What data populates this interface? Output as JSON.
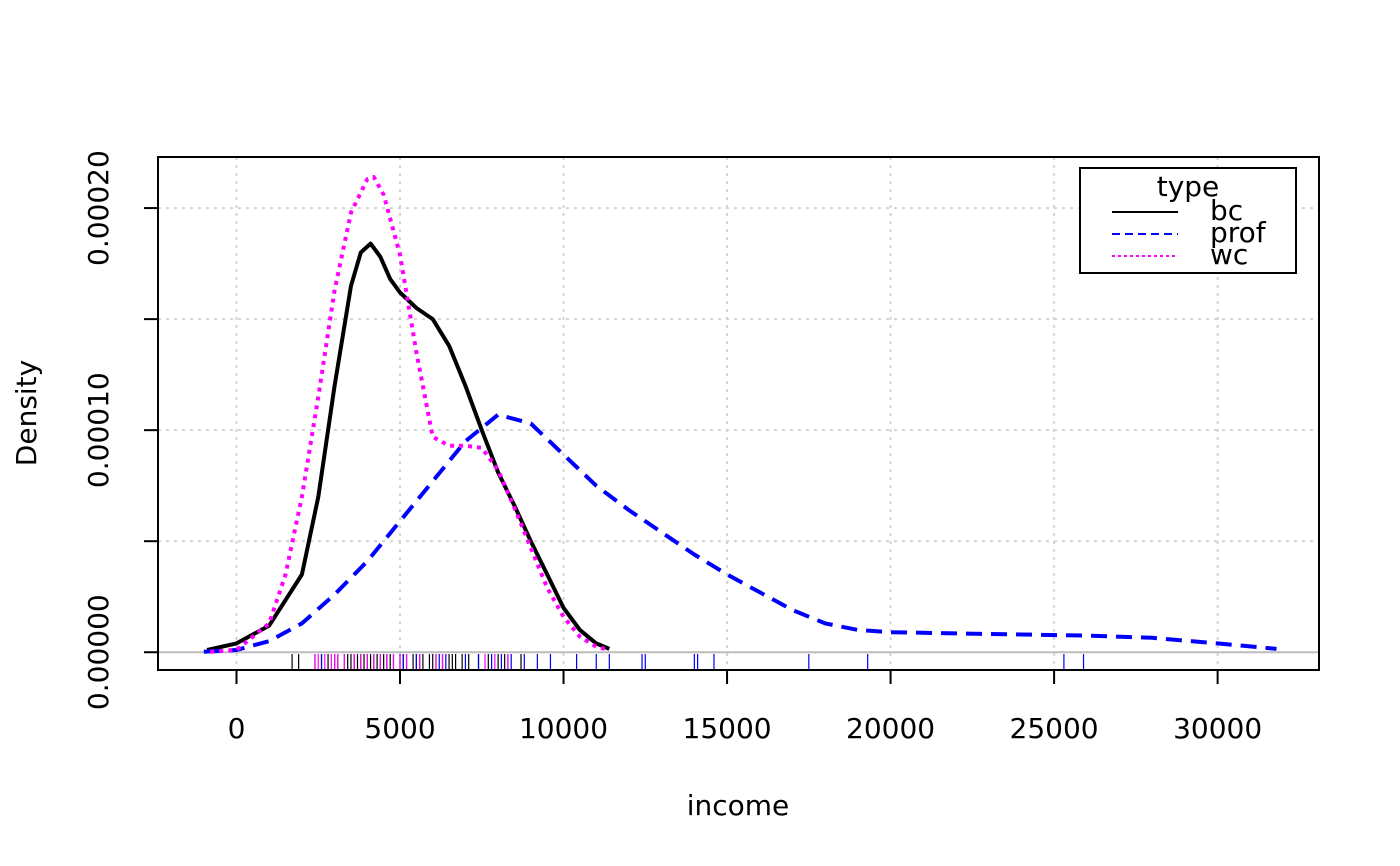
{
  "chart_data": {
    "type": "line",
    "xlabel": "income",
    "ylabel": "Density",
    "xlim": [
      -2400,
      33100
    ],
    "ylim": [
      -8e-06,
      0.000223
    ],
    "x_ticks": [
      0,
      5000,
      10000,
      15000,
      20000,
      25000,
      30000
    ],
    "x_tick_labels": [
      "0",
      "5000",
      "10000",
      "15000",
      "20000",
      "25000",
      "30000"
    ],
    "y_ticks": [
      0,
      5e-05,
      0.0001,
      0.00015,
      0.0002
    ],
    "y_tick_labels": [
      "0.00000",
      "0.00010",
      "0.00020"
    ],
    "y_labeled_ticks": [
      0,
      0.0001,
      0.0002
    ],
    "grid": true,
    "legend": {
      "title": "type",
      "position": "top-right"
    },
    "series": [
      {
        "name": "bc",
        "color": "#000000",
        "dash": "solid",
        "x": [
          -900,
          0,
          1000,
          2000,
          2500,
          3000,
          3500,
          3800,
          4100,
          4400,
          4700,
          5000,
          5500,
          6000,
          6500,
          7000,
          7500,
          8000,
          8500,
          9000,
          9500,
          10000,
          10500,
          11000,
          11400
        ],
        "y": [
          1e-06,
          4e-06,
          1.2e-05,
          3.5e-05,
          7e-05,
          0.00012,
          0.000165,
          0.00018,
          0.000184,
          0.000178,
          0.000168,
          0.000162,
          0.000155,
          0.00015,
          0.000138,
          0.00012,
          0.0001,
          8.1e-05,
          6.6e-05,
          5e-05,
          3.5e-05,
          2e-05,
          1e-05,
          4e-06,
          1.5e-06
        ]
      },
      {
        "name": "prof",
        "color": "#0000ff",
        "dash": "dashed",
        "x": [
          -1000,
          0,
          1000,
          2000,
          3000,
          4000,
          5000,
          6000,
          7000,
          8000,
          9000,
          10000,
          11000,
          12000,
          13000,
          14000,
          15000,
          16000,
          17000,
          18000,
          19000,
          20000,
          22000,
          24000,
          26000,
          28000,
          30000,
          31800
        ],
        "y": [
          2e-07,
          1e-06,
          5e-06,
          1.3e-05,
          2.6e-05,
          4.1e-05,
          5.9e-05,
          7.7e-05,
          9.5e-05,
          0.000107,
          0.000103,
          8.9e-05,
          7.5e-05,
          6.4e-05,
          5.4e-05,
          4.4e-05,
          3.5e-05,
          2.7e-05,
          1.9e-05,
          1.3e-05,
          1e-05,
          9e-06,
          8.5e-06,
          8e-06,
          7.5e-06,
          6.5e-06,
          4e-06,
          1.5e-06
        ]
      },
      {
        "name": "wc",
        "color": "#ff00ff",
        "dash": "dotted",
        "x": [
          -800,
          0,
          1000,
          1500,
          2000,
          2500,
          3000,
          3500,
          4000,
          4200,
          4500,
          5000,
          5500,
          6000,
          6500,
          7000,
          7500,
          8000,
          8500,
          9000,
          9500,
          10000,
          10500,
          11000,
          11400
        ],
        "y": [
          2e-07,
          1e-06,
          1.3e-05,
          3.5e-05,
          7e-05,
          0.000115,
          0.000163,
          0.000198,
          0.000213,
          0.000214,
          0.000206,
          0.000179,
          0.000135,
          9.7e-05,
          9.3e-05,
          9.3e-05,
          9.2e-05,
          8.2e-05,
          6.5e-05,
          4.7e-05,
          2.9e-05,
          1.6e-05,
          7e-06,
          2.5e-06,
          1e-06
        ]
      }
    ],
    "rug": [
      {
        "series": "bc",
        "values": [
          1700,
          1900,
          2400,
          2600,
          2800,
          3000,
          3100,
          3300,
          3400,
          3500,
          3600,
          3700,
          3800,
          3900,
          4000,
          4100,
          4200,
          4300,
          4400,
          4500,
          4600,
          4700,
          4800,
          5000,
          5100,
          5200,
          5400,
          5500,
          5600,
          5700,
          5900,
          6000,
          6100,
          6300,
          6500,
          6600,
          6700,
          6900,
          7100,
          7400,
          7700,
          8000,
          8200,
          8700
        ]
      },
      {
        "series": "prof",
        "values": [
          2600,
          4600,
          5100,
          5500,
          6200,
          6400,
          7000,
          7400,
          7800,
          8100,
          8300,
          8400,
          8800,
          9200,
          9600,
          10400,
          11000,
          11400,
          12400,
          12500,
          14000,
          14100,
          14600,
          17500,
          19300,
          25300,
          25900
        ]
      },
      {
        "series": "wc",
        "values": [
          2400,
          2500,
          2700,
          2900,
          3000,
          3100,
          3300,
          3600,
          3800,
          4000,
          4200,
          4400,
          4600,
          4800,
          5000,
          5200,
          5600,
          6100,
          6300,
          7600,
          7900,
          8300
        ]
      }
    ]
  }
}
